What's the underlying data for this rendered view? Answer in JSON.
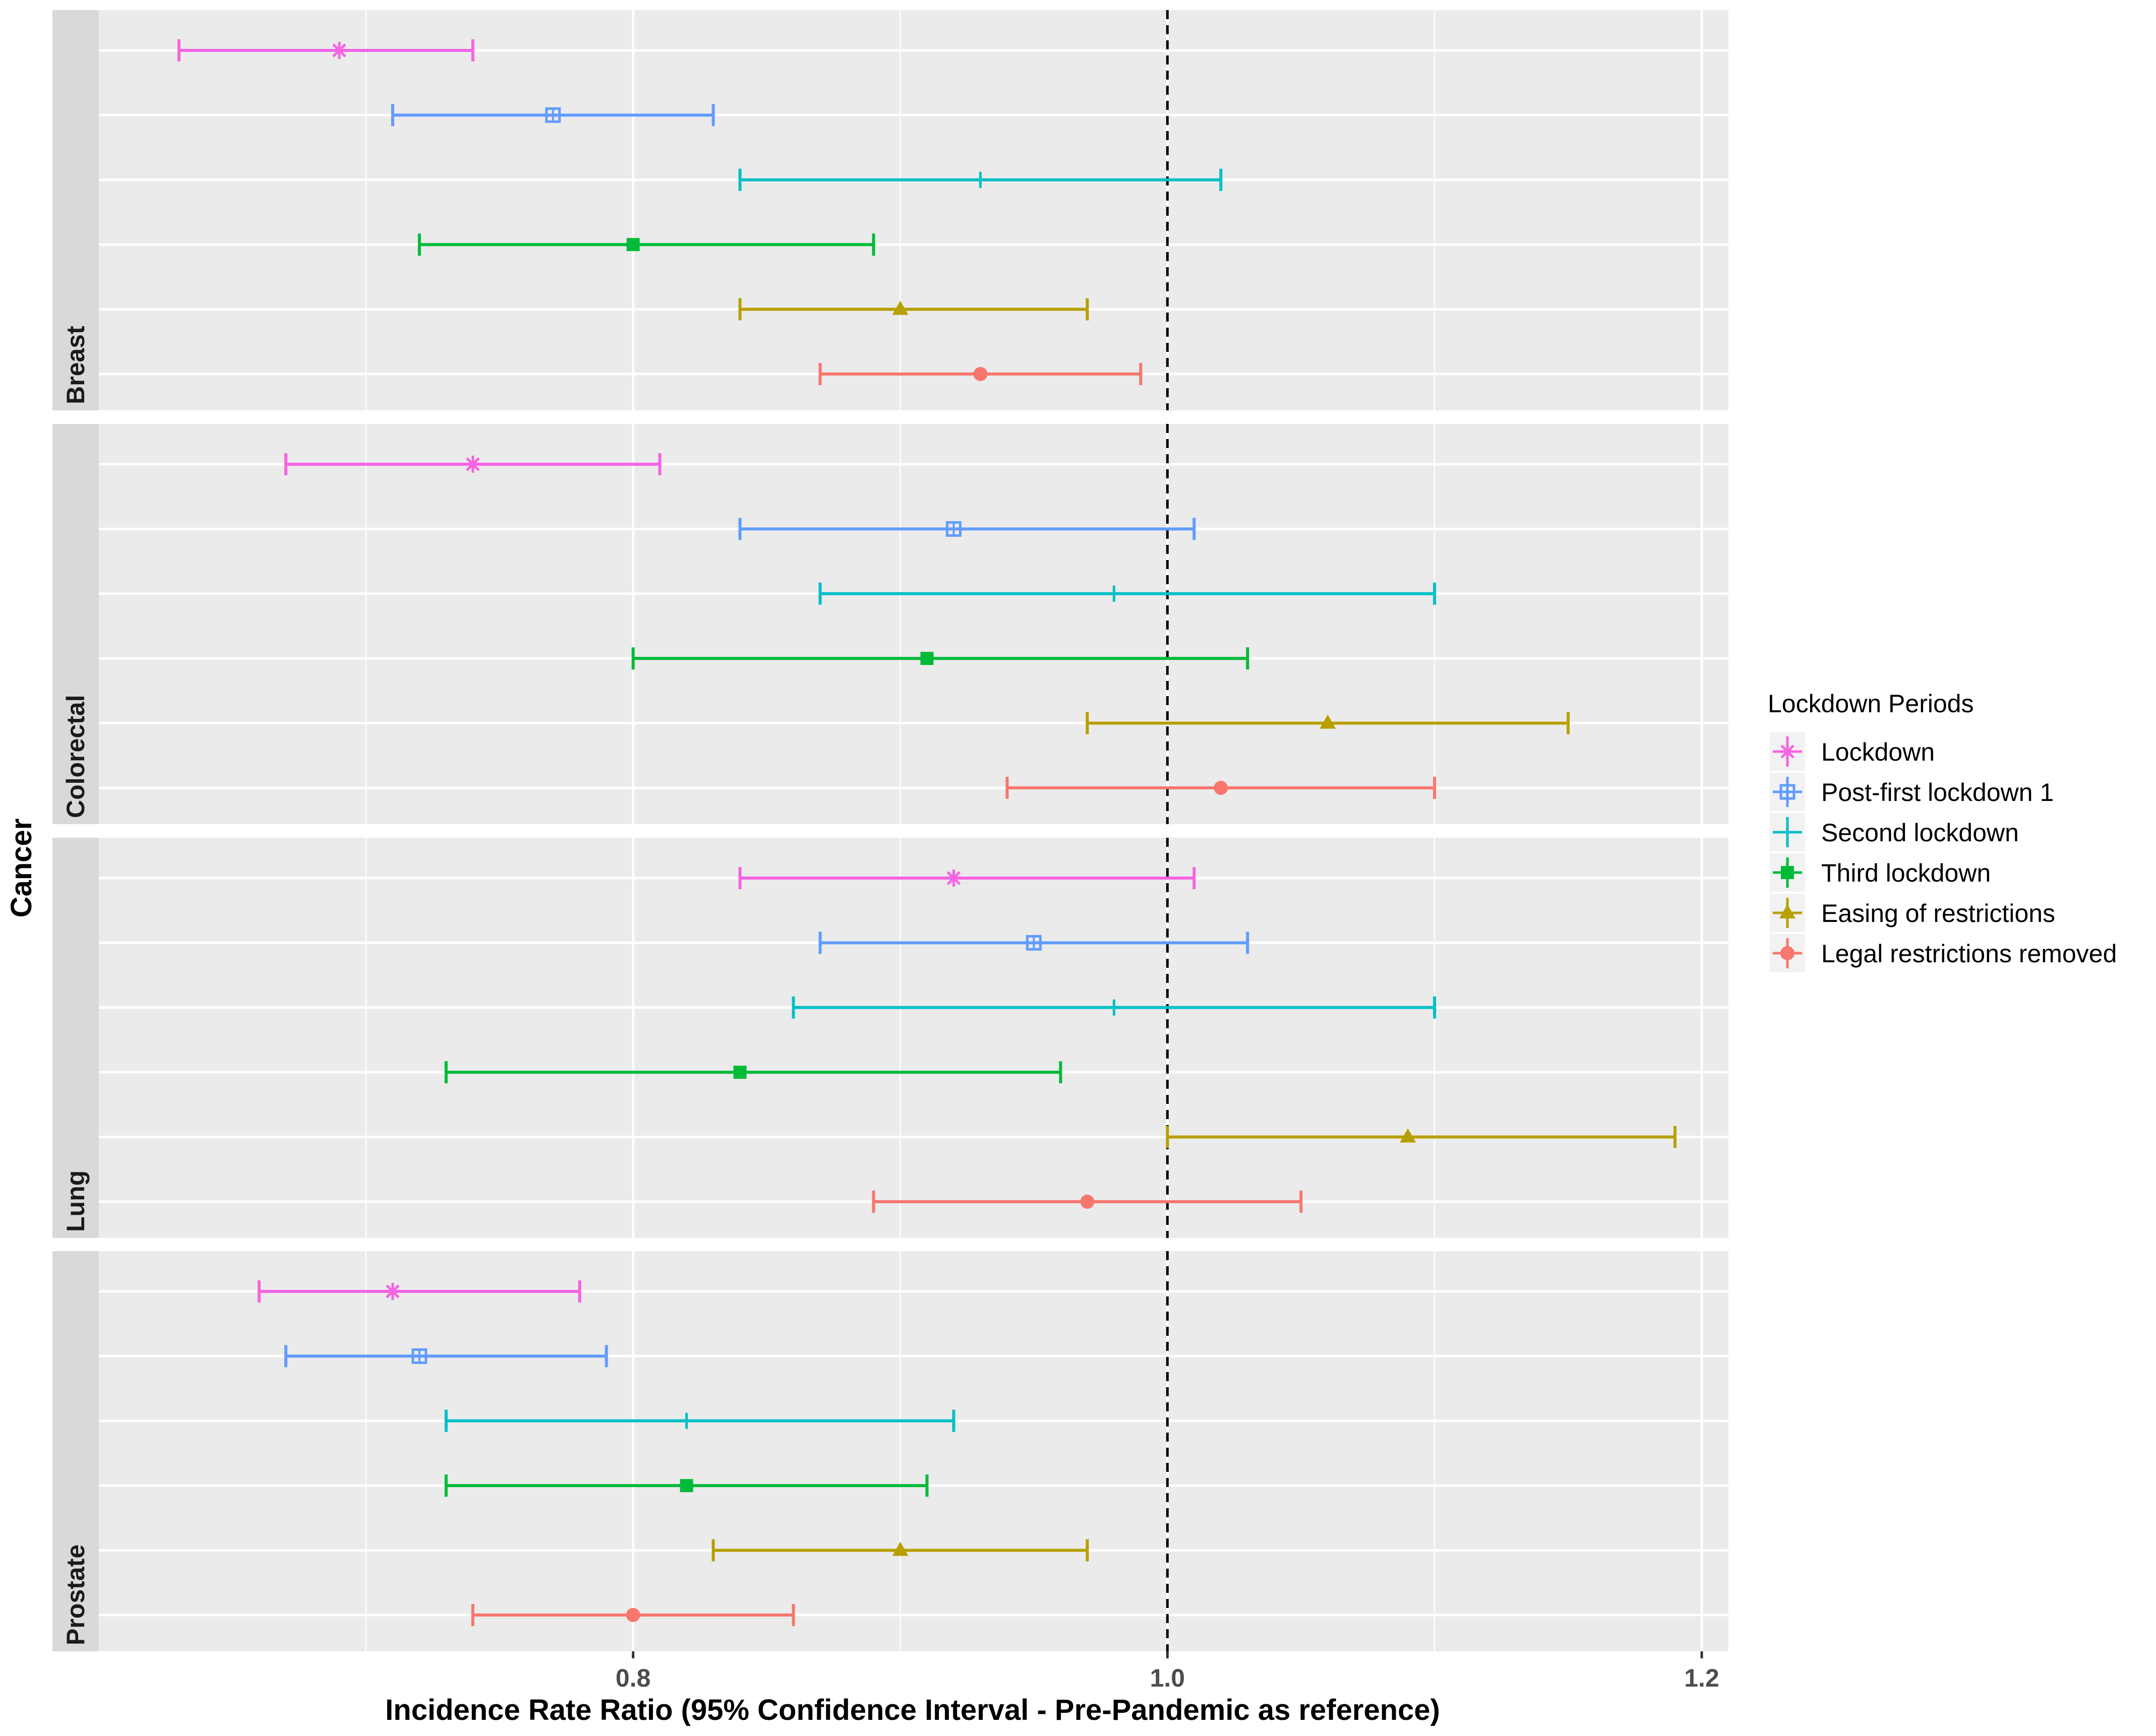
{
  "chart_data": {
    "type": "errorbar",
    "xlabel": "Incidence Rate Ratio (95% Confidence Interval - Pre-Pandemic as reference)",
    "ylabel": "Cancer",
    "xlim": [
      0.6,
      1.21
    ],
    "xticks": [
      0.8,
      1.0,
      1.2
    ],
    "xtick_labels": [
      "0.8",
      "1.0",
      "1.2"
    ],
    "reference_line": 1.0,
    "legend_title": "Lockdown Periods",
    "series": [
      {
        "name": "Lockdown",
        "color": "#F564E3",
        "shape": "asterisk"
      },
      {
        "name": "Post-first lockdown 1",
        "color": "#619CFF",
        "shape": "square-cross"
      },
      {
        "name": "Second lockdown",
        "color": "#00BFC4",
        "shape": "plus"
      },
      {
        "name": "Third lockdown",
        "color": "#00BA38",
        "shape": "square"
      },
      {
        "name": "Easing of restrictions",
        "color": "#B79F00",
        "shape": "triangle"
      },
      {
        "name": "Legal restrictions removed",
        "color": "#F8766D",
        "shape": "circle"
      }
    ],
    "panels": [
      {
        "label": "Breast",
        "estimates": [
          {
            "series": 0,
            "est": 0.69,
            "lo": 0.63,
            "hi": 0.74
          },
          {
            "series": 1,
            "est": 0.77,
            "lo": 0.71,
            "hi": 0.83
          },
          {
            "series": 2,
            "est": 0.93,
            "lo": 0.84,
            "hi": 1.02
          },
          {
            "series": 3,
            "est": 0.8,
            "lo": 0.72,
            "hi": 0.89
          },
          {
            "series": 4,
            "est": 0.9,
            "lo": 0.84,
            "hi": 0.97
          },
          {
            "series": 5,
            "est": 0.93,
            "lo": 0.87,
            "hi": 0.99
          }
        ]
      },
      {
        "label": "Colorectal",
        "estimates": [
          {
            "series": 0,
            "est": 0.74,
            "lo": 0.67,
            "hi": 0.81
          },
          {
            "series": 1,
            "est": 0.92,
            "lo": 0.84,
            "hi": 1.01
          },
          {
            "series": 2,
            "est": 0.98,
            "lo": 0.87,
            "hi": 1.1
          },
          {
            "series": 3,
            "est": 0.91,
            "lo": 0.8,
            "hi": 1.03
          },
          {
            "series": 4,
            "est": 1.06,
            "lo": 0.97,
            "hi": 1.15
          },
          {
            "series": 5,
            "est": 1.02,
            "lo": 0.94,
            "hi": 1.1
          }
        ]
      },
      {
        "label": "Lung",
        "estimates": [
          {
            "series": 0,
            "est": 0.92,
            "lo": 0.84,
            "hi": 1.01
          },
          {
            "series": 1,
            "est": 0.95,
            "lo": 0.87,
            "hi": 1.03
          },
          {
            "series": 2,
            "est": 0.98,
            "lo": 0.86,
            "hi": 1.1
          },
          {
            "series": 3,
            "est": 0.84,
            "lo": 0.73,
            "hi": 0.96
          },
          {
            "series": 4,
            "est": 1.09,
            "lo": 1.0,
            "hi": 1.19
          },
          {
            "series": 5,
            "est": 0.97,
            "lo": 0.89,
            "hi": 1.05
          }
        ]
      },
      {
        "label": "Prostate",
        "estimates": [
          {
            "series": 0,
            "est": 0.71,
            "lo": 0.66,
            "hi": 0.78
          },
          {
            "series": 1,
            "est": 0.72,
            "lo": 0.67,
            "hi": 0.79
          },
          {
            "series": 2,
            "est": 0.82,
            "lo": 0.73,
            "hi": 0.92
          },
          {
            "series": 3,
            "est": 0.82,
            "lo": 0.73,
            "hi": 0.91
          },
          {
            "series": 4,
            "est": 0.9,
            "lo": 0.83,
            "hi": 0.97
          },
          {
            "series": 5,
            "est": 0.8,
            "lo": 0.74,
            "hi": 0.86
          }
        ]
      }
    ]
  }
}
